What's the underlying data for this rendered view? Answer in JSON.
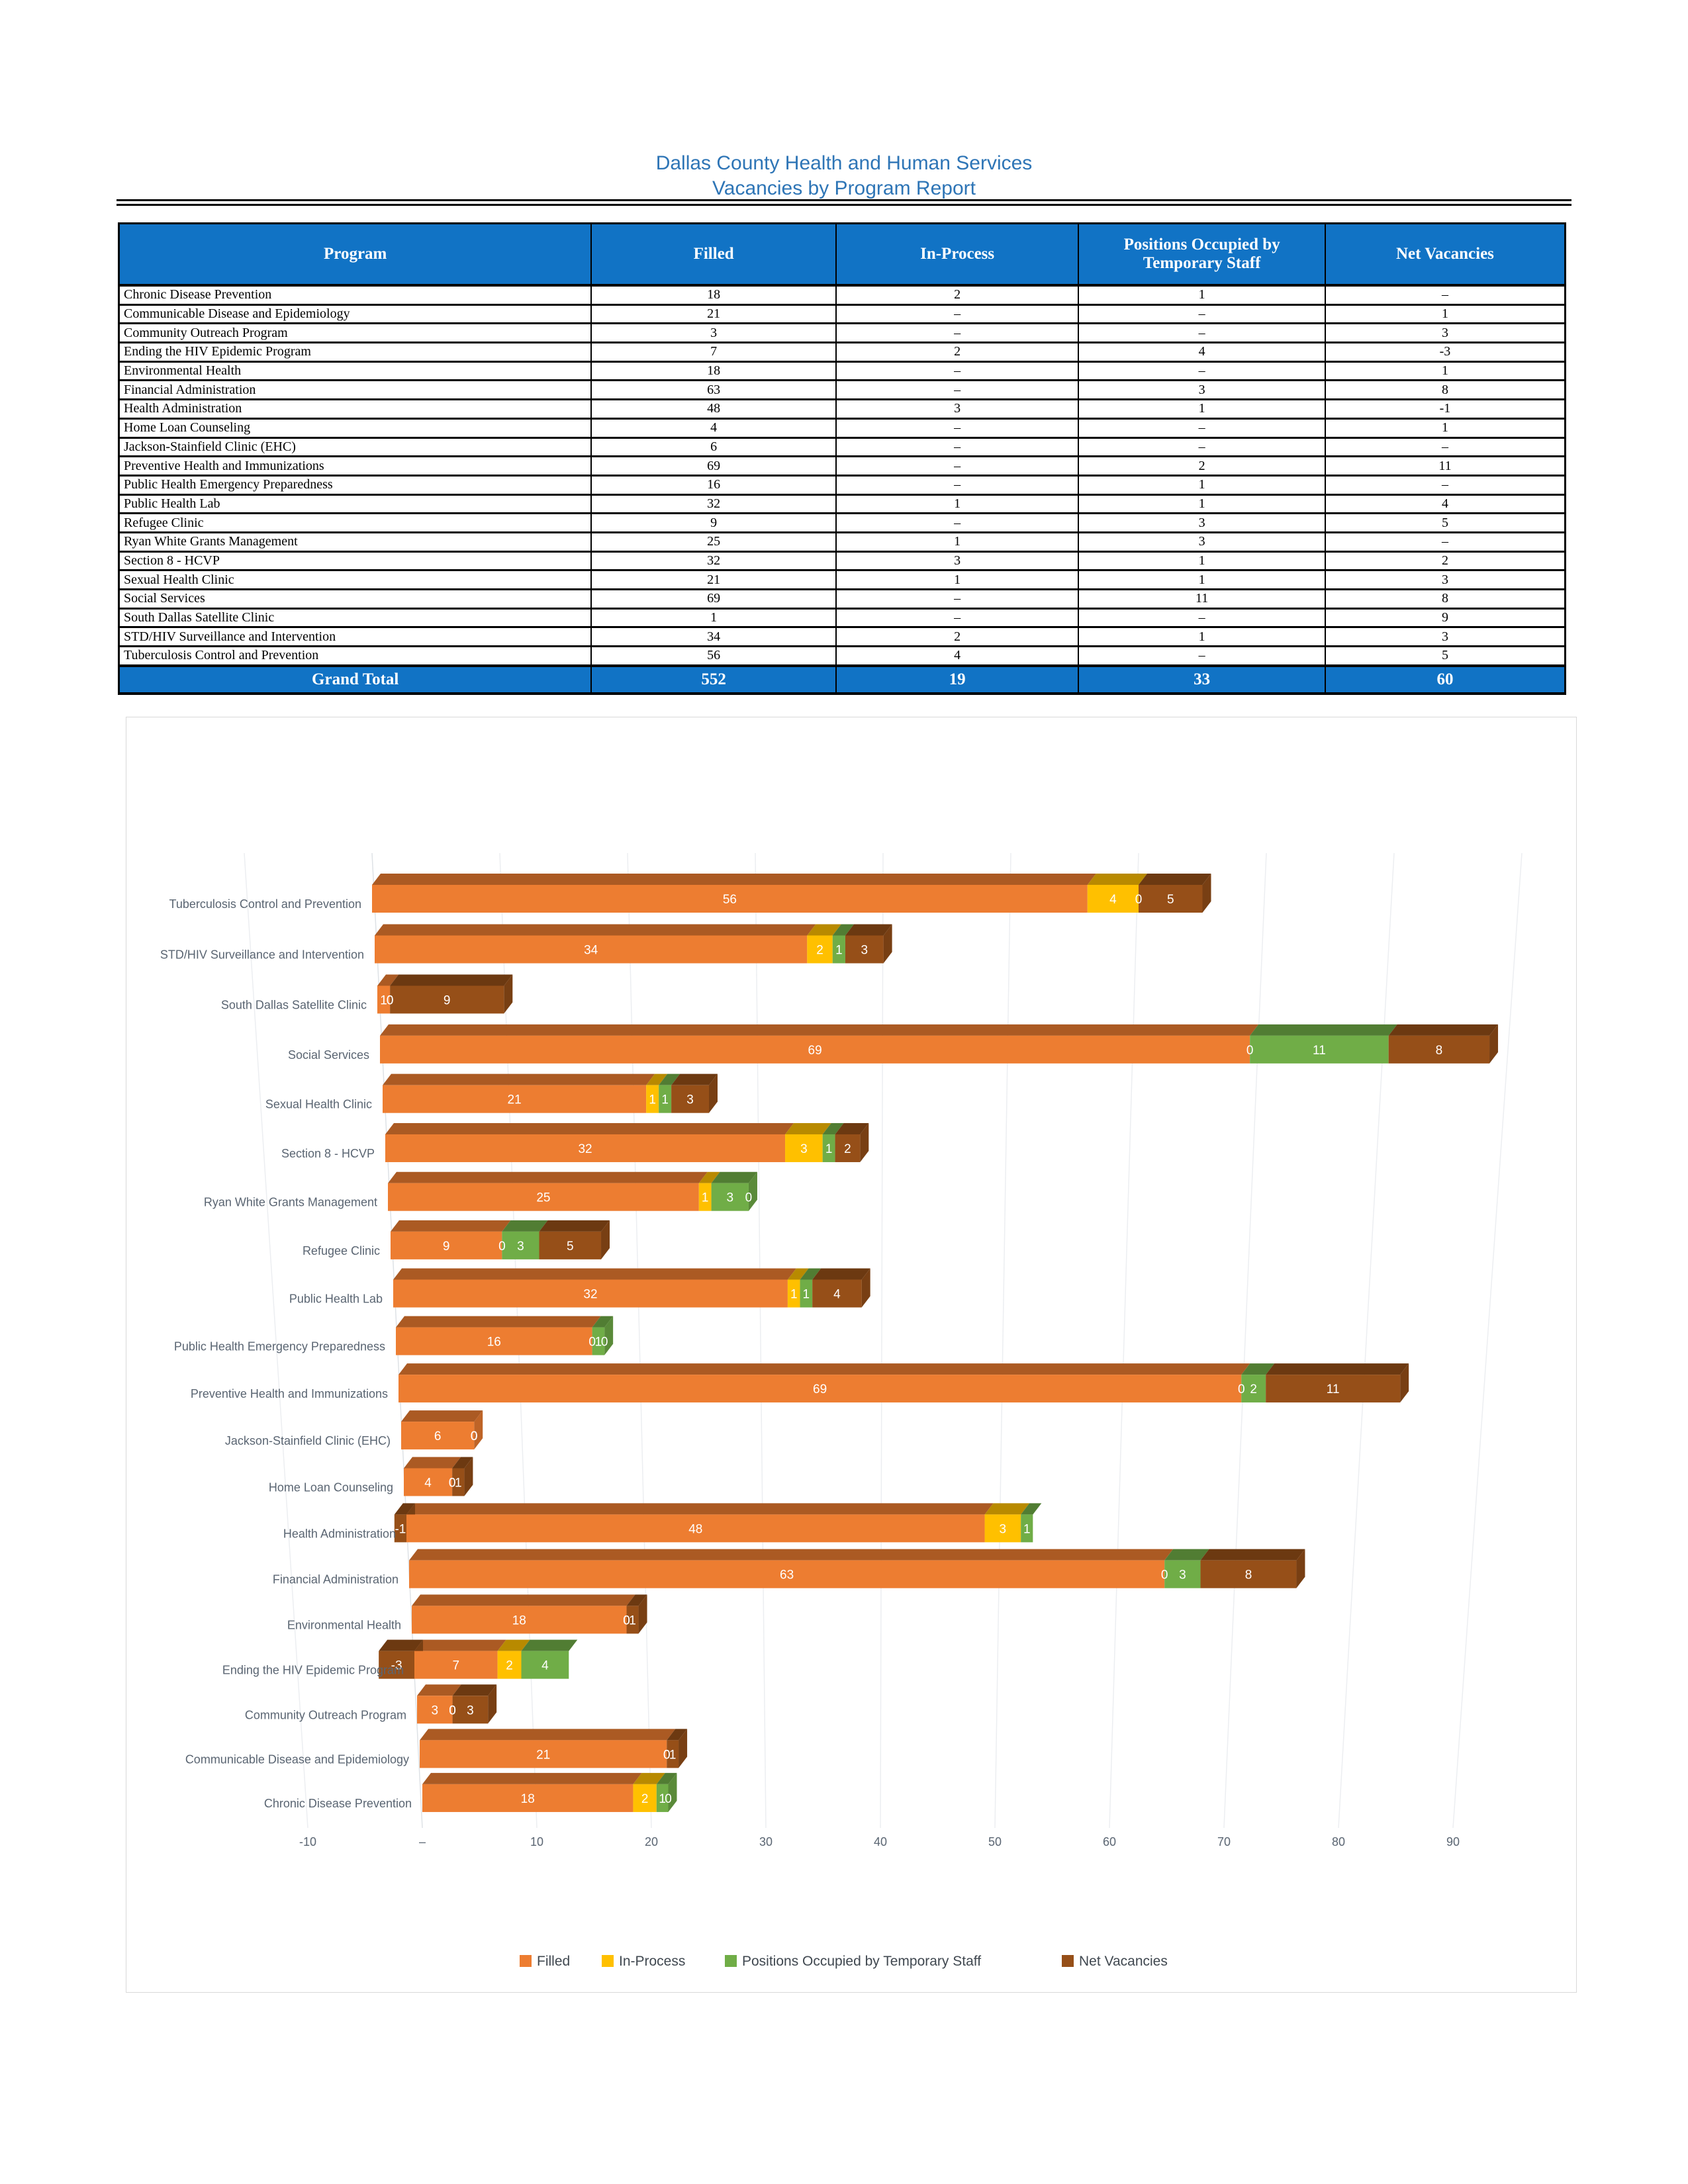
{
  "page": {
    "title_line1": "Dallas County Health and Human Services",
    "title_line2": "Vacancies by Program Report"
  },
  "colors": {
    "title_blue": "#2E75B6",
    "table_header_blue": "#1173C5",
    "axis_text": "#5A6572",
    "legend_text": "#404850"
  },
  "table": {
    "columns": [
      "Program",
      "Filled",
      "In-Process",
      "Positions Occupied by Temporary Staff",
      "Net Vacancies"
    ],
    "rows": [
      [
        "Chronic Disease Prevention",
        "18",
        "2",
        "1",
        "–"
      ],
      [
        "Communicable Disease and Epidemiology",
        "21",
        "–",
        "–",
        "1"
      ],
      [
        "Community Outreach Program",
        "3",
        "–",
        "–",
        "3"
      ],
      [
        "Ending the HIV Epidemic Program",
        "7",
        "2",
        "4",
        "-3"
      ],
      [
        "Environmental Health",
        "18",
        "–",
        "–",
        "1"
      ],
      [
        "Financial Administration",
        "63",
        "–",
        "3",
        "8"
      ],
      [
        "Health Administration",
        "48",
        "3",
        "1",
        "-1"
      ],
      [
        "Home Loan Counseling",
        "4",
        "–",
        "–",
        "1"
      ],
      [
        "Jackson-Stainfield Clinic (EHC)",
        "6",
        "–",
        "–",
        "–"
      ],
      [
        "Preventive Health and Immunizations",
        "69",
        "–",
        "2",
        "11"
      ],
      [
        "Public Health Emergency Preparedness",
        "16",
        "–",
        "1",
        "–"
      ],
      [
        "Public Health Lab",
        "32",
        "1",
        "1",
        "4"
      ],
      [
        "Refugee Clinic",
        "9",
        "–",
        "3",
        "5"
      ],
      [
        "Ryan White Grants Management",
        "25",
        "1",
        "3",
        "–"
      ],
      [
        "Section 8 - HCVP",
        "32",
        "3",
        "1",
        "2"
      ],
      [
        "Sexual Health Clinic",
        "21",
        "1",
        "1",
        "3"
      ],
      [
        "Social Services",
        "69",
        "–",
        "11",
        "8"
      ],
      [
        "South Dallas Satellite Clinic",
        "1",
        "–",
        "–",
        "9"
      ],
      [
        "STD/HIV Surveillance and Intervention",
        "34",
        "2",
        "1",
        "3"
      ],
      [
        "Tuberculosis Control and Prevention",
        "56",
        "4",
        "–",
        "5"
      ]
    ],
    "grand_total": [
      "Grand Total",
      "552",
      "19",
      "33",
      "60"
    ]
  },
  "chart_data": {
    "type": "bar",
    "orientation": "horizontal",
    "stacked": true,
    "style": "3d",
    "categories": [
      "Tuberculosis Control and Prevention",
      "STD/HIV Surveillance and Intervention",
      "South Dallas Satellite Clinic",
      "Social Services",
      "Sexual Health Clinic",
      "Section 8 - HCVP",
      "Ryan White Grants Management",
      "Refugee Clinic",
      "Public Health Lab",
      "Public Health Emergency Preparedness",
      "Preventive Health and Immunizations",
      "Jackson-Stainfield Clinic (EHC)",
      "Home Loan Counseling",
      "Health Administration",
      "Financial Administration",
      "Environmental Health",
      "Ending the HIV Epidemic Program",
      "Community Outreach Program",
      "Communicable Disease and Epidemiology",
      "Chronic Disease Prevention"
    ],
    "series": [
      {
        "name": "Filled",
        "color": "#ED7D31",
        "values": [
          56,
          34,
          1,
          69,
          21,
          32,
          25,
          9,
          32,
          16,
          69,
          6,
          4,
          48,
          63,
          18,
          7,
          3,
          21,
          18
        ]
      },
      {
        "name": "In-Process",
        "color": "#FFC000",
        "values": [
          4,
          2,
          0,
          0,
          1,
          3,
          1,
          0,
          1,
          0,
          0,
          0,
          0,
          3,
          0,
          0,
          2,
          0,
          0,
          2
        ]
      },
      {
        "name": "Positions Occupied by Temporary Staff",
        "color": "#70AD47",
        "values": [
          0,
          1,
          0,
          11,
          1,
          1,
          3,
          3,
          1,
          1,
          2,
          0,
          0,
          1,
          3,
          0,
          4,
          0,
          0,
          1
        ]
      },
      {
        "name": "Net Vacancies",
        "color": "#964F18",
        "values": [
          5,
          3,
          9,
          8,
          3,
          2,
          0,
          5,
          4,
          0,
          11,
          0,
          1,
          -1,
          8,
          1,
          -3,
          3,
          1,
          0
        ]
      }
    ],
    "xlim": [
      -10,
      90
    ],
    "x_ticks": [
      "-10",
      "–",
      "10",
      "20",
      "30",
      "40",
      "50",
      "60",
      "70",
      "80",
      "90"
    ],
    "tick_values": [
      -10,
      0,
      10,
      20,
      30,
      40,
      50,
      60,
      70,
      80,
      90
    ],
    "zero_label": "–",
    "grid": true,
    "data_labels": "inside-white",
    "legend_position": "bottom"
  }
}
